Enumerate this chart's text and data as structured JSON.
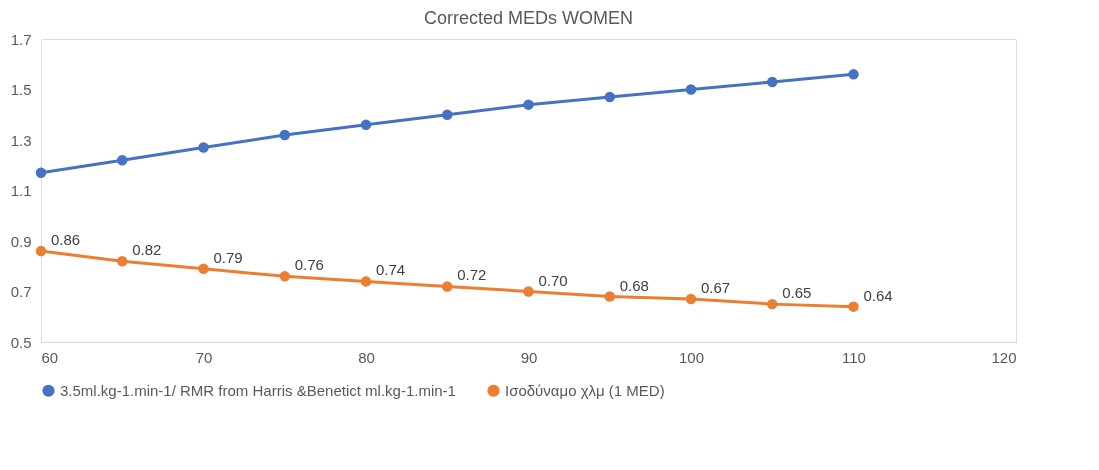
{
  "chart_data": {
    "type": "line",
    "title": "Corrected MEDs  WOMEN",
    "x": [
      60,
      65,
      70,
      75,
      80,
      85,
      90,
      95,
      100,
      105,
      110
    ],
    "xlim": [
      60,
      120
    ],
    "xticks": [
      60,
      70,
      80,
      90,
      100,
      110,
      120
    ],
    "ylim": [
      0.5,
      1.7
    ],
    "yticks": [
      0.5,
      0.7,
      0.9,
      1.1,
      1.3,
      1.5,
      1.7
    ],
    "grid": false,
    "legend": "bottom",
    "marker": "circle",
    "line_style": "solid",
    "series": [
      {
        "name": "3.5ml.kg-1.min-1/ RMR from Harris &Benetict ml.kg-1.min-1",
        "color": "#4472c4",
        "values": [
          1.17,
          1.22,
          1.27,
          1.32,
          1.36,
          1.4,
          1.44,
          1.47,
          1.5,
          1.53,
          1.56
        ]
      },
      {
        "name": "Ισοδύναμο χλμ (1 MED)",
        "color": "#ed7d31",
        "values": [
          0.86,
          0.82,
          0.79,
          0.76,
          0.74,
          0.72,
          0.7,
          0.68,
          0.67,
          0.65,
          0.64
        ],
        "value_labels": [
          "0.86",
          "0.82",
          "0.79",
          "0.76",
          "0.74",
          "0.72",
          "0.70",
          "0.68",
          "0.67",
          "0.65",
          "0.64"
        ]
      }
    ]
  }
}
